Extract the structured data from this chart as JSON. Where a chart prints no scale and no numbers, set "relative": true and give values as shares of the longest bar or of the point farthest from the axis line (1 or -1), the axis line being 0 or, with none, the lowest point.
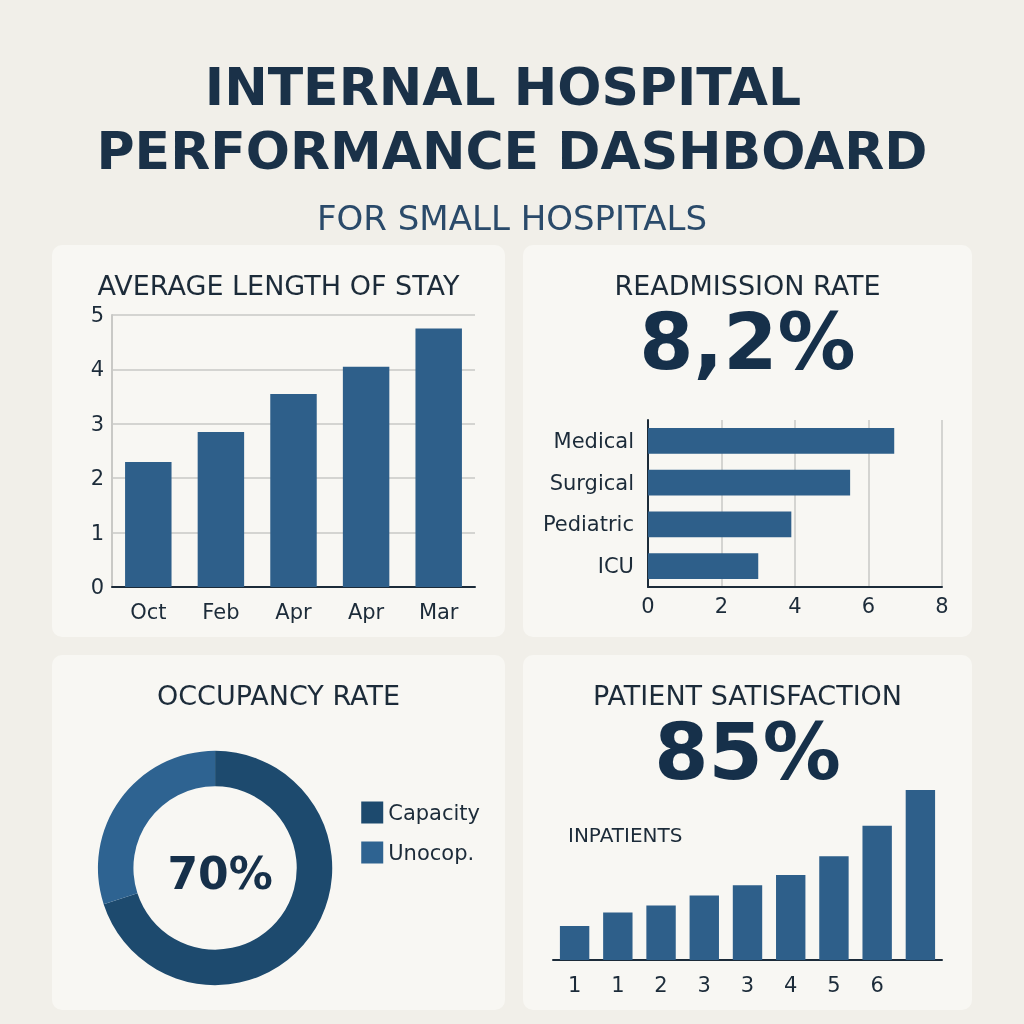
{
  "chart_data": [
    {
      "type": "other",
      "title": "INTERNAL HOSPITAL PERFORMANCE DASHBOARD",
      "subtitle": "FOR SMALL HOSPITALS"
    },
    {
      "type": "bar",
      "title": "AVERAGE LENGTH OF STAY",
      "categories": [
        "Oct",
        "Feb",
        "Apr",
        "Apr",
        "Mar"
      ],
      "values": [
        2.3,
        2.85,
        3.55,
        4.05,
        4.75
      ],
      "color": "#2e5f8a",
      "ylim": [
        0,
        5
      ],
      "yticks": [
        0,
        1,
        2,
        3,
        4,
        5
      ],
      "grid": "y"
    },
    {
      "type": "bar",
      "orientation": "horizontal",
      "title": "READMISSION RATE",
      "subtitle": "8,2%",
      "categories": [
        "Medical",
        "Surgical",
        "Pediatric",
        "ICU"
      ],
      "values": [
        6.7,
        5.5,
        3.9,
        3.0
      ],
      "color": "#2e5f8a",
      "xlim": [
        0,
        8
      ],
      "xticks": [
        0,
        2,
        4,
        6,
        8
      ],
      "grid": "x"
    },
    {
      "type": "donut",
      "title": "OCCUPANCY RATE",
      "categories": [
        "Capacity",
        "Unocop."
      ],
      "values": [
        70,
        30
      ],
      "colors": [
        "#1d4a6e",
        "#2e6391"
      ],
      "legend": "right",
      "annotations": [
        "70%"
      ]
    },
    {
      "type": "bar",
      "title": "PATIENT SATISFACTION",
      "subtitle": "85%",
      "ylabel": "INPATIENTS",
      "categories": [
        "1",
        "1",
        "2",
        "3",
        "3",
        "4",
        "5",
        "6",
        null
      ],
      "values": [
        0.2,
        0.28,
        0.32,
        0.38,
        0.44,
        0.5,
        0.61,
        0.79,
        1
      ],
      "color": "#2e5f8a",
      "relative": true
    }
  ]
}
